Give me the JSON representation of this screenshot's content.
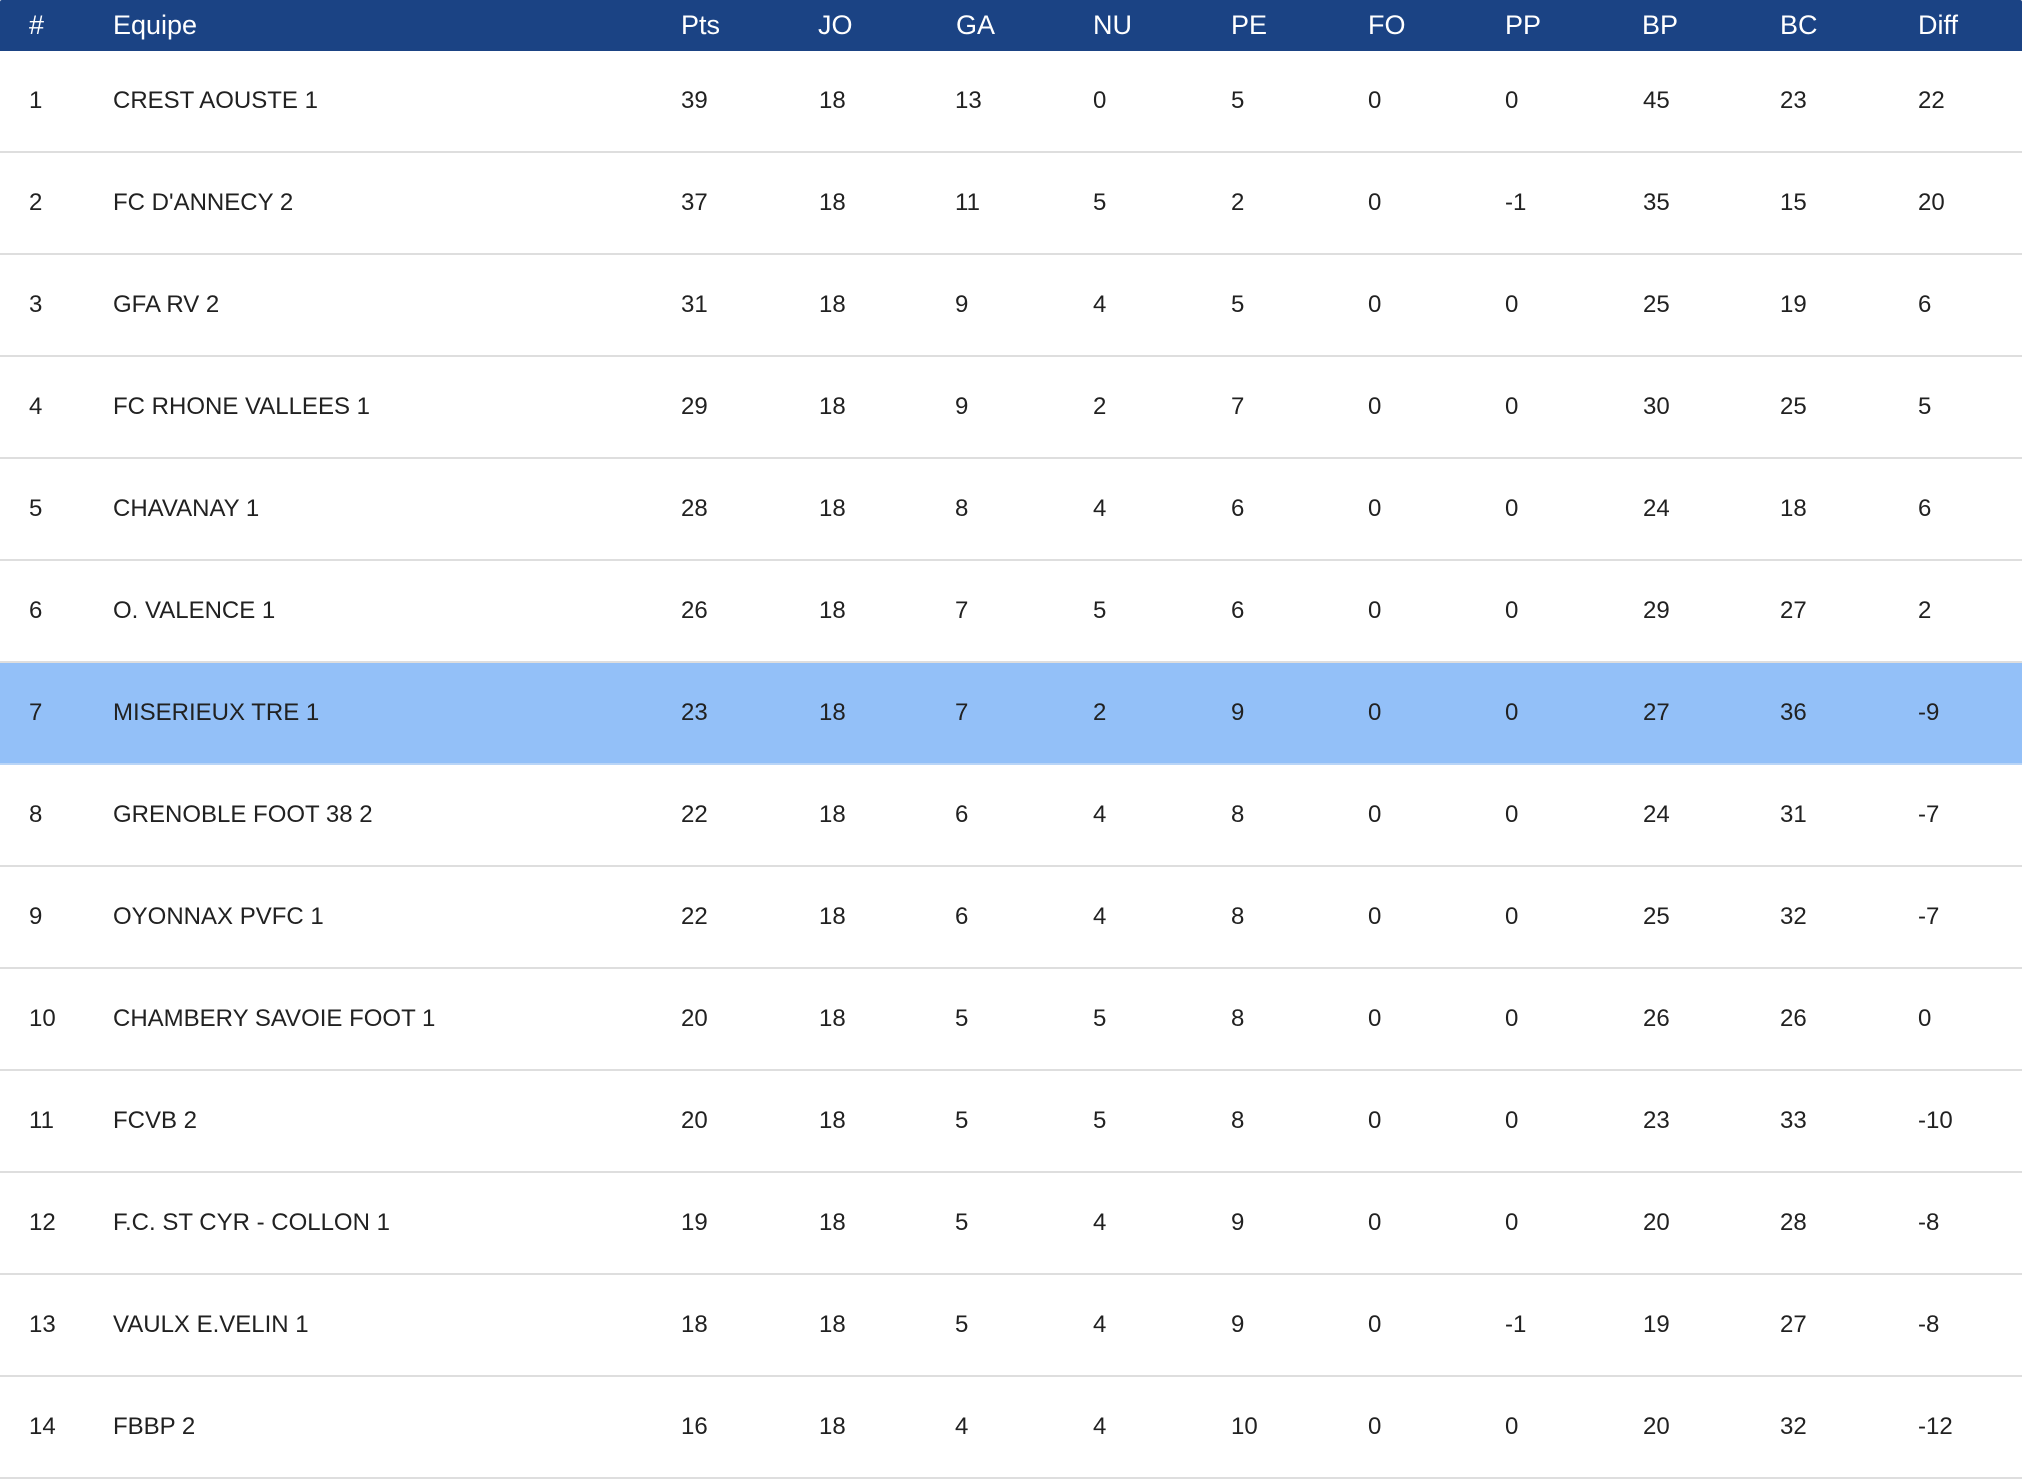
{
  "colors": {
    "header_background": "#1b4384",
    "header_text": "#ffffff",
    "highlight_row": "#93c0f8",
    "row_divider": "#dedede"
  },
  "table": {
    "columns": [
      "#",
      "Equipe",
      "Pts",
      "JO",
      "GA",
      "NU",
      "PE",
      "FO",
      "PP",
      "BP",
      "BC",
      "Diff"
    ],
    "highlighted_rank": "7",
    "rows": [
      [
        "1",
        "CREST AOUSTE 1",
        "39",
        "18",
        "13",
        "0",
        "5",
        "0",
        "0",
        "45",
        "23",
        "22"
      ],
      [
        "2",
        "FC D'ANNECY 2",
        "37",
        "18",
        "11",
        "5",
        "2",
        "0",
        "-1",
        "35",
        "15",
        "20"
      ],
      [
        "3",
        "GFA RV 2",
        "31",
        "18",
        "9",
        "4",
        "5",
        "0",
        "0",
        "25",
        "19",
        "6"
      ],
      [
        "4",
        "FC RHONE VALLEES 1",
        "29",
        "18",
        "9",
        "2",
        "7",
        "0",
        "0",
        "30",
        "25",
        "5"
      ],
      [
        "5",
        "CHAVANAY 1",
        "28",
        "18",
        "8",
        "4",
        "6",
        "0",
        "0",
        "24",
        "18",
        "6"
      ],
      [
        "6",
        "O. VALENCE 1",
        "26",
        "18",
        "7",
        "5",
        "6",
        "0",
        "0",
        "29",
        "27",
        "2"
      ],
      [
        "7",
        "MISERIEUX TRE 1",
        "23",
        "18",
        "7",
        "2",
        "9",
        "0",
        "0",
        "27",
        "36",
        "-9"
      ],
      [
        "8",
        "GRENOBLE FOOT 38 2",
        "22",
        "18",
        "6",
        "4",
        "8",
        "0",
        "0",
        "24",
        "31",
        "-7"
      ],
      [
        "9",
        "OYONNAX PVFC 1",
        "22",
        "18",
        "6",
        "4",
        "8",
        "0",
        "0",
        "25",
        "32",
        "-7"
      ],
      [
        "10",
        "CHAMBERY SAVOIE FOOT 1",
        "20",
        "18",
        "5",
        "5",
        "8",
        "0",
        "0",
        "26",
        "26",
        "0"
      ],
      [
        "11",
        "FCVB 2",
        "20",
        "18",
        "5",
        "5",
        "8",
        "0",
        "0",
        "23",
        "33",
        "-10"
      ],
      [
        "12",
        "F.C. ST CYR - COLLON 1",
        "19",
        "18",
        "5",
        "4",
        "9",
        "0",
        "0",
        "20",
        "28",
        "-8"
      ],
      [
        "13",
        "VAULX E.VELIN 1",
        "18",
        "18",
        "5",
        "4",
        "9",
        "0",
        "-1",
        "19",
        "27",
        "-8"
      ],
      [
        "14",
        "FBBP 2",
        "16",
        "18",
        "4",
        "4",
        "10",
        "0",
        "0",
        "20",
        "32",
        "-12"
      ]
    ]
  }
}
